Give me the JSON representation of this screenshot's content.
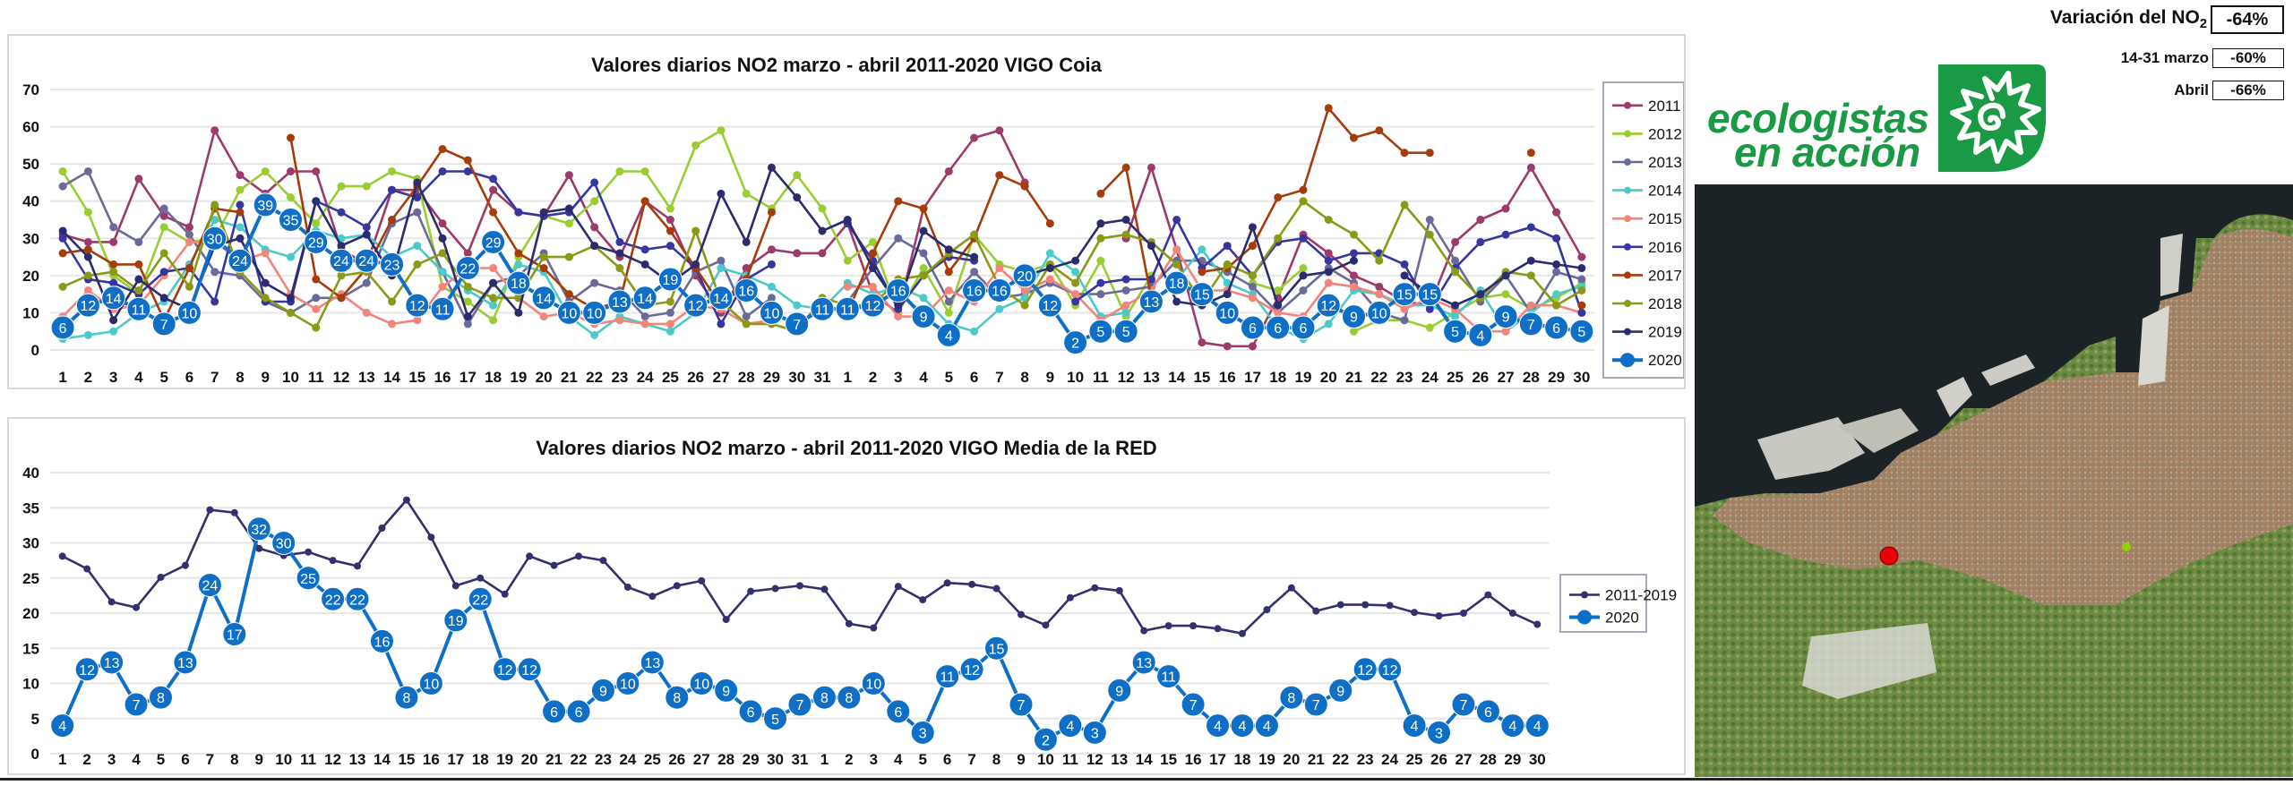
{
  "variation": {
    "main_label": "Variación del NO",
    "main_sub": "2",
    "main_value": "-64%",
    "rows": [
      {
        "label": "14-31 marzo",
        "value": "-60%"
      },
      {
        "label": "Abril",
        "value": "-66%"
      }
    ]
  },
  "logo": {
    "line1": "ecologistas",
    "line2": "en acción",
    "color": "#1a9a44"
  },
  "map": {
    "markers": [
      {
        "name": "coia-station",
        "color": "#e8000b"
      },
      {
        "name": "other-station",
        "color": "#8fd400"
      }
    ]
  },
  "chart_data": [
    {
      "type": "line",
      "title": "Valores diarios NO2 marzo - abril 2011-2020 VIGO Coia",
      "xlabel": "",
      "ylabel": "",
      "ylim": [
        0,
        70
      ],
      "yticks": [
        0,
        10,
        20,
        30,
        40,
        50,
        60,
        70
      ],
      "grid": true,
      "legend": "right",
      "categories": [
        "1",
        "2",
        "3",
        "4",
        "5",
        "6",
        "7",
        "8",
        "9",
        "10",
        "11",
        "12",
        "13",
        "14",
        "15",
        "16",
        "17",
        "18",
        "19",
        "20",
        "21",
        "22",
        "23",
        "24",
        "25",
        "26",
        "27",
        "28",
        "29",
        "30",
        "31",
        "1",
        "2",
        "3",
        "4",
        "5",
        "6",
        "7",
        "8",
        "9",
        "10",
        "11",
        "12",
        "13",
        "14",
        "15",
        "16",
        "17",
        "18",
        "19",
        "20",
        "21",
        "22",
        "23",
        "24",
        "25",
        "26",
        "27",
        "28",
        "29",
        "30"
      ],
      "series": [
        {
          "name": "2011",
          "color": "#9b3a6b",
          "values": [
            31,
            29,
            29,
            46,
            36,
            33,
            59,
            47,
            42,
            48,
            48,
            27,
            23,
            43,
            43,
            34,
            26,
            43,
            37,
            36,
            47,
            33,
            25,
            40,
            35,
            20,
            10,
            22,
            27,
            26,
            26,
            34,
            15,
            10,
            38,
            48,
            57,
            59,
            45,
            null,
            null,
            null,
            30,
            49,
            27,
            2,
            1,
            1,
            14,
            31,
            26,
            20,
            17,
            13,
            12,
            29,
            35,
            38,
            49,
            37,
            25
          ]
        },
        {
          "name": "2012",
          "color": "#9acd32",
          "values": [
            48,
            37,
            20,
            15,
            33,
            29,
            30,
            43,
            48,
            41,
            34,
            44,
            44,
            48,
            46,
            17,
            13,
            8,
            25,
            36,
            34,
            40,
            48,
            48,
            38,
            55,
            59,
            42,
            38,
            47,
            38,
            24,
            29,
            10,
            22,
            10,
            31,
            23,
            21,
            23,
            12,
            24,
            9,
            20,
            null,
            15,
            null,
            18,
            16,
            22,
            null,
            5,
            8,
            8,
            6,
            10,
            14,
            15,
            11,
            14,
            18
          ]
        },
        {
          "name": "2013",
          "color": "#6a6a9a",
          "values": [
            44,
            48,
            33,
            29,
            38,
            31,
            21,
            20,
            13,
            10,
            14,
            14,
            18,
            34,
            37,
            21,
            7,
            18,
            20,
            26,
            13,
            18,
            16,
            9,
            10,
            21,
            24,
            9,
            14,
            null,
            null,
            13,
            22,
            30,
            26,
            13,
            21,
            14,
            15,
            18,
            15,
            15,
            16,
            17,
            24,
            24,
            21,
            17,
            10,
            16,
            22,
            18,
            10,
            8,
            35,
            24,
            13,
            20,
            10,
            21,
            19
          ]
        },
        {
          "name": "2014",
          "color": "#4cc9c9",
          "values": [
            3,
            4,
            5,
            10,
            13,
            23,
            35,
            33,
            27,
            25,
            32,
            30,
            31,
            25,
            28,
            21,
            16,
            12,
            23,
            21,
            9,
            4,
            9,
            7,
            5,
            10,
            22,
            20,
            17,
            12,
            11,
            18,
            15,
            17,
            14,
            7,
            5,
            11,
            14,
            26,
            21,
            9,
            10,
            null,
            19,
            27,
            18,
            15,
            6,
            3,
            7,
            16,
            15,
            12,
            12,
            9,
            16,
            5,
            10,
            15,
            17
          ]
        },
        {
          "name": "2015",
          "color": "#f2857b",
          "values": [
            9,
            16,
            11,
            12,
            20,
            29,
            29,
            24,
            26,
            15,
            11,
            15,
            10,
            7,
            8,
            17,
            22,
            22,
            14,
            9,
            10,
            7,
            8,
            7,
            7,
            12,
            11,
            7,
            8,
            null,
            null,
            17,
            17,
            9,
            9,
            16,
            13,
            22,
            16,
            19,
            15,
            8,
            12,
            16,
            27,
            16,
            16,
            14,
            10,
            9,
            18,
            17,
            15,
            11,
            14,
            11,
            5,
            5,
            12,
            12,
            10
          ]
        },
        {
          "name": "2016",
          "color": "#3636a0",
          "values": [
            30,
            19,
            18,
            15,
            21,
            22,
            13,
            39,
            13,
            13,
            40,
            37,
            33,
            43,
            41,
            48,
            48,
            46,
            37,
            36,
            37,
            45,
            29,
            27,
            28,
            22,
            7,
            19,
            23,
            null,
            null,
            34,
            24,
            11,
            20,
            25,
            24,
            null,
            null,
            null,
            13,
            18,
            19,
            19,
            35,
            22,
            28,
            20,
            29,
            30,
            24,
            26,
            26,
            23,
            11,
            22,
            29,
            31,
            33,
            30,
            10
          ]
        },
        {
          "name": "2017",
          "color": "#a63c0a",
          "values": [
            26,
            27,
            23,
            23,
            8,
            22,
            38,
            37,
            null,
            57,
            19,
            14,
            22,
            35,
            44,
            54,
            51,
            37,
            26,
            22,
            15,
            11,
            13,
            40,
            32,
            22,
            12,
            19,
            37,
            null,
            null,
            10,
            26,
            40,
            38,
            21,
            30,
            47,
            44,
            34,
            null,
            42,
            49,
            14,
            null,
            21,
            22,
            28,
            41,
            43,
            65,
            57,
            59,
            53,
            53,
            null,
            null,
            null,
            53,
            null,
            12
          ]
        },
        {
          "name": "2018",
          "color": "#8a9a16",
          "values": [
            17,
            20,
            21,
            16,
            26,
            17,
            39,
            21,
            14,
            10,
            6,
            20,
            21,
            13,
            23,
            26,
            17,
            14,
            14,
            25,
            25,
            28,
            22,
            12,
            13,
            32,
            13,
            7,
            7,
            5,
            14,
            12,
            12,
            19,
            20,
            26,
            31,
            17,
            12,
            23,
            18,
            30,
            31,
            29,
            23,
            13,
            23,
            20,
            30,
            40,
            35,
            31,
            24,
            39,
            31,
            21,
            14,
            21,
            20,
            12,
            16
          ]
        },
        {
          "name": "2019",
          "color": "#2b2b6e",
          "values": [
            32,
            25,
            8,
            19,
            14,
            11,
            28,
            30,
            18,
            14,
            40,
            28,
            31,
            20,
            45,
            30,
            9,
            18,
            10,
            37,
            38,
            28,
            26,
            23,
            18,
            23,
            42,
            29,
            49,
            41,
            32,
            35,
            22,
            12,
            32,
            27,
            25,
            null,
            20,
            22,
            24,
            34,
            35,
            28,
            13,
            12,
            15,
            33,
            12,
            20,
            21,
            24,
            null,
            20,
            15,
            12,
            15,
            20,
            24,
            23,
            22
          ]
        },
        {
          "name": "2020",
          "color": "#0f6fc6",
          "labeled": true,
          "values": [
            6,
            12,
            14,
            11,
            7,
            10,
            30,
            24,
            39,
            35,
            29,
            24,
            24,
            23,
            12,
            11,
            22,
            29,
            18,
            14,
            10,
            10,
            13,
            14,
            19,
            12,
            14,
            16,
            10,
            7,
            11,
            11,
            12,
            16,
            9,
            4,
            16,
            16,
            20,
            12,
            2,
            5,
            5,
            13,
            18,
            15,
            10,
            6,
            6,
            6,
            12,
            9,
            10,
            15,
            15,
            5,
            4,
            9,
            7,
            6,
            5
          ]
        }
      ]
    },
    {
      "type": "line",
      "title": "Valores diarios NO2 marzo - abril 2011-2020 VIGO Media de la RED",
      "xlabel": "",
      "ylabel": "",
      "ylim": [
        0,
        40
      ],
      "yticks": [
        0,
        5,
        10,
        15,
        20,
        25,
        30,
        35,
        40
      ],
      "grid": true,
      "legend": "right",
      "categories": [
        "1",
        "2",
        "3",
        "4",
        "5",
        "6",
        "7",
        "8",
        "9",
        "10",
        "11",
        "12",
        "13",
        "14",
        "15",
        "16",
        "17",
        "18",
        "19",
        "20",
        "21",
        "22",
        "23",
        "24",
        "25",
        "26",
        "27",
        "28",
        "29",
        "30",
        "31",
        "1",
        "2",
        "3",
        "4",
        "5",
        "6",
        "7",
        "8",
        "9",
        "10",
        "11",
        "12",
        "13",
        "14",
        "15",
        "16",
        "17",
        "18",
        "19",
        "20",
        "21",
        "22",
        "23",
        "24",
        "25",
        "26",
        "27",
        "28",
        "29",
        "30"
      ],
      "series": [
        {
          "name": "2011-2019",
          "color": "#33306e",
          "values": [
            28.1,
            26.3,
            21.6,
            20.8,
            25.1,
            26.8,
            34.7,
            34.3,
            29.2,
            28.2,
            28.7,
            27.5,
            26.7,
            32.1,
            36.1,
            30.8,
            23.9,
            25.0,
            22.7,
            28.1,
            26.8,
            28.1,
            27.5,
            23.7,
            22.4,
            23.9,
            24.6,
            19.1,
            23.1,
            23.5,
            23.9,
            23.4,
            18.5,
            17.9,
            23.8,
            21.9,
            24.3,
            24.1,
            23.5,
            19.8,
            18.3,
            22.2,
            23.6,
            23.2,
            17.5,
            18.2,
            18.2,
            17.8,
            17.1,
            20.5,
            23.6,
            20.3,
            21.2,
            21.2,
            21.1,
            20.1,
            19.6,
            20.0,
            22.6,
            20.0,
            18.4
          ]
        },
        {
          "name": "2020",
          "color": "#0f6fc6",
          "labeled": true,
          "values": [
            4,
            12,
            13,
            7,
            8,
            13,
            24,
            17,
            32,
            30,
            25,
            22,
            22,
            16,
            8,
            10,
            19,
            22,
            12,
            12,
            6,
            6,
            9,
            10,
            13,
            8,
            10,
            9,
            6,
            5,
            7,
            8,
            8,
            10,
            6,
            3,
            11,
            12,
            15,
            7,
            2,
            4,
            3,
            9,
            13,
            11,
            7,
            4,
            4,
            4,
            8,
            7,
            9,
            12,
            12,
            4,
            3,
            7,
            6,
            4,
            4
          ]
        }
      ]
    }
  ]
}
